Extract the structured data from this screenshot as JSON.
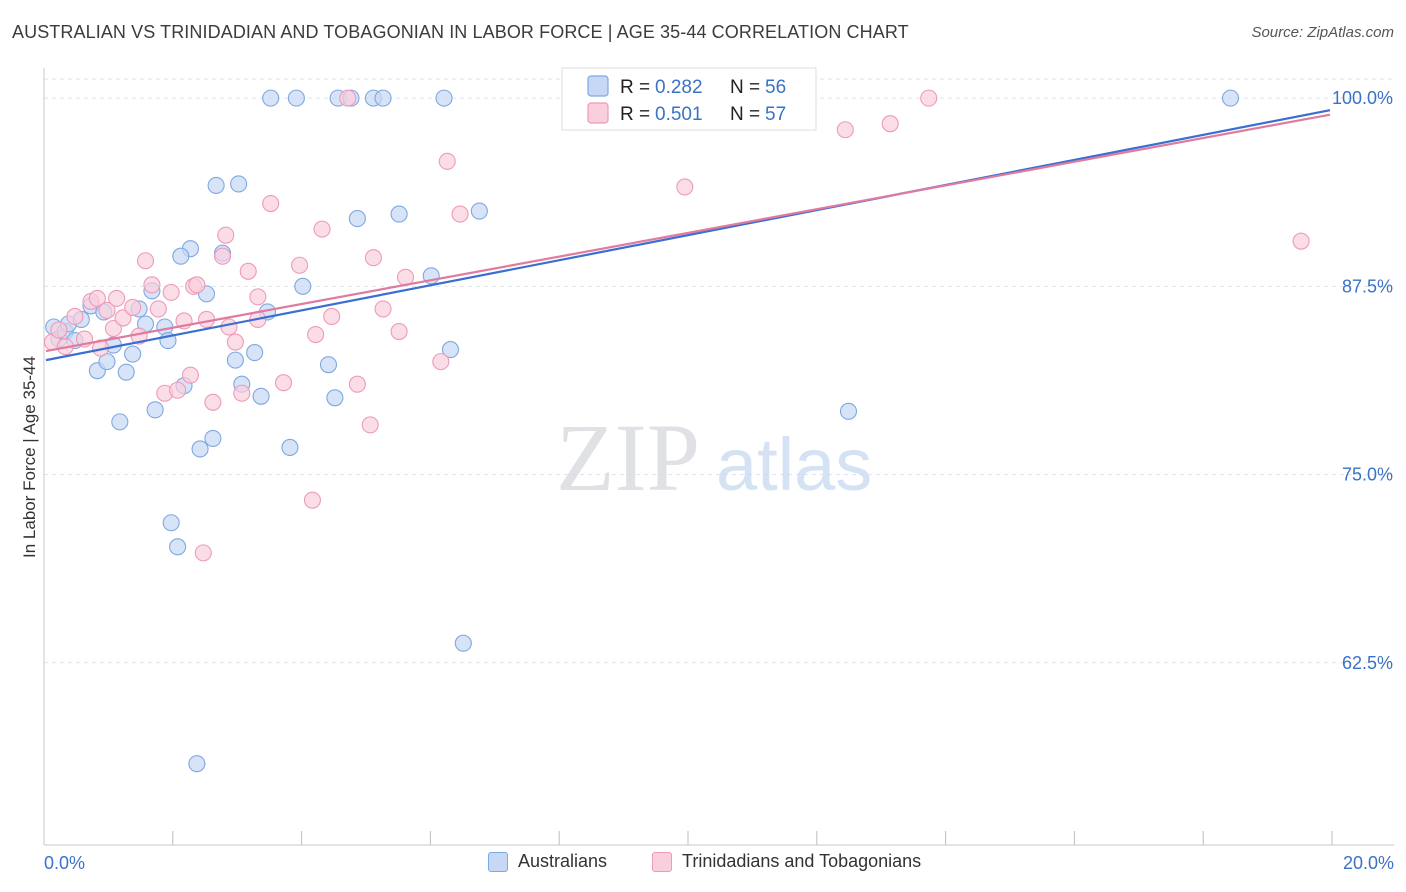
{
  "header": {
    "title": "AUSTRALIAN VS TRINIDADIAN AND TOBAGONIAN IN LABOR FORCE | AGE 35-44 CORRELATION CHART",
    "source": "Source: ZipAtlas.com"
  },
  "watermark": {
    "zip": "ZIP",
    "atlas": "atlas"
  },
  "colors": {
    "australians": "#7fa8e0",
    "australians_fill": "#c6d8f4",
    "australians_line": "#3a6fd0",
    "trinidadians": "#ee9ab8",
    "trinidadians_fill": "#f9cfdd",
    "trinidadians_line": "#e07aa0",
    "axis_text": "#3a72c8",
    "grid": "#dde3ea"
  },
  "legend": {
    "rows": [
      {
        "r_label": "R = ",
        "r_value": "0.282",
        "n_label": "N = ",
        "n_value": "56"
      },
      {
        "r_label": "R = ",
        "r_value": "0.501",
        "n_label": "N = ",
        "n_value": "57"
      }
    ]
  },
  "bottom_legend": {
    "series1": "Australians",
    "series2": "Trinidadians and Tobagonians"
  },
  "chart_data": {
    "type": "scatter",
    "title": "AUSTRALIAN VS TRINIDADIAN AND TOBAGONIAN IN LABOR FORCE | AGE 35-44 CORRELATION CHART",
    "xlabel": "",
    "ylabel": "In Labor Force | Age 35-44",
    "xlim": [
      0,
      20
    ],
    "ylim": [
      50.4,
      102
    ],
    "x_tick_labels": [
      "0.0%",
      "20.0%"
    ],
    "y_ticks": [
      62.5,
      75.0,
      87.5,
      100.0
    ],
    "y_tick_labels": [
      "62.5%",
      "75.0%",
      "87.5%",
      "100.0%"
    ],
    "grid": true,
    "legend_position": "top-center",
    "series": [
      {
        "name": "Australians",
        "r": 0.282,
        "n": 56,
        "trend": {
          "x": [
            0,
            20
          ],
          "y": [
            82.6,
            99.2
          ]
        },
        "points": [
          [
            0.12,
            84.8
          ],
          [
            0.2,
            84.0
          ],
          [
            0.3,
            84.5
          ],
          [
            0.35,
            85.0
          ],
          [
            0.45,
            83.9
          ],
          [
            0.55,
            85.3
          ],
          [
            0.7,
            86.2
          ],
          [
            0.8,
            81.9
          ],
          [
            0.9,
            85.8
          ],
          [
            0.95,
            82.5
          ],
          [
            1.05,
            83.6
          ],
          [
            1.15,
            78.5
          ],
          [
            1.25,
            81.8
          ],
          [
            1.35,
            83.0
          ],
          [
            1.45,
            86.0
          ],
          [
            1.55,
            85.0
          ],
          [
            1.65,
            87.2
          ],
          [
            1.7,
            79.3
          ],
          [
            1.85,
            84.8
          ],
          [
            1.9,
            83.9
          ],
          [
            1.95,
            71.8
          ],
          [
            2.05,
            70.2
          ],
          [
            2.15,
            80.9
          ],
          [
            2.25,
            90.0
          ],
          [
            2.35,
            55.8
          ],
          [
            2.4,
            76.7
          ],
          [
            2.5,
            87.0
          ],
          [
            2.6,
            77.4
          ],
          [
            2.65,
            94.2
          ],
          [
            2.75,
            89.7
          ],
          [
            2.95,
            82.6
          ],
          [
            3.0,
            94.3
          ],
          [
            3.05,
            81.0
          ],
          [
            3.25,
            83.1
          ],
          [
            3.35,
            80.2
          ],
          [
            3.45,
            85.8
          ],
          [
            3.5,
            100.0
          ],
          [
            3.9,
            100.0
          ],
          [
            3.8,
            76.8
          ],
          [
            4.0,
            87.5
          ],
          [
            4.4,
            82.3
          ],
          [
            4.5,
            80.1
          ],
          [
            4.55,
            100.0
          ],
          [
            4.75,
            100.0
          ],
          [
            4.85,
            92.0
          ],
          [
            5.1,
            100.0
          ],
          [
            5.25,
            100.0
          ],
          [
            5.5,
            92.3
          ],
          [
            6.0,
            88.2
          ],
          [
            6.3,
            83.3
          ],
          [
            6.5,
            63.8
          ],
          [
            6.2,
            100.0
          ],
          [
            6.75,
            92.5
          ],
          [
            12.5,
            79.2
          ],
          [
            18.45,
            100.0
          ],
          [
            2.1,
            89.5
          ]
        ]
      },
      {
        "name": "Trinidadians and Tobagonians",
        "r": 0.501,
        "n": 57,
        "trend": {
          "x": [
            0,
            20
          ],
          "y": [
            83.2,
            98.9
          ]
        },
        "points": [
          [
            0.1,
            83.8
          ],
          [
            0.2,
            84.6
          ],
          [
            0.3,
            83.5
          ],
          [
            0.45,
            85.5
          ],
          [
            0.6,
            84.0
          ],
          [
            0.7,
            86.5
          ],
          [
            0.8,
            86.7
          ],
          [
            0.85,
            83.4
          ],
          [
            0.95,
            85.9
          ],
          [
            1.05,
            84.7
          ],
          [
            1.1,
            86.7
          ],
          [
            1.2,
            85.4
          ],
          [
            1.35,
            86.1
          ],
          [
            1.45,
            84.2
          ],
          [
            1.55,
            89.2
          ],
          [
            1.65,
            87.6
          ],
          [
            1.75,
            86.0
          ],
          [
            1.85,
            80.4
          ],
          [
            1.95,
            87.1
          ],
          [
            2.05,
            80.6
          ],
          [
            2.15,
            85.2
          ],
          [
            2.25,
            81.6
          ],
          [
            2.3,
            87.5
          ],
          [
            2.5,
            85.3
          ],
          [
            2.6,
            79.8
          ],
          [
            2.75,
            89.5
          ],
          [
            2.85,
            84.8
          ],
          [
            2.95,
            83.8
          ],
          [
            3.05,
            80.4
          ],
          [
            3.15,
            88.5
          ],
          [
            3.3,
            85.3
          ],
          [
            3.5,
            93.0
          ],
          [
            3.7,
            81.1
          ],
          [
            3.95,
            88.9
          ],
          [
            4.15,
            73.3
          ],
          [
            4.3,
            91.3
          ],
          [
            4.45,
            85.5
          ],
          [
            4.7,
            100.0
          ],
          [
            4.85,
            81.0
          ],
          [
            5.05,
            78.3
          ],
          [
            5.1,
            89.4
          ],
          [
            5.25,
            86.0
          ],
          [
            5.5,
            84.5
          ],
          [
            5.6,
            88.1
          ],
          [
            6.15,
            82.5
          ],
          [
            6.25,
            95.8
          ],
          [
            6.45,
            92.3
          ],
          [
            9.95,
            94.1
          ],
          [
            12.45,
            97.9
          ],
          [
            13.15,
            98.3
          ],
          [
            13.75,
            100.0
          ],
          [
            19.55,
            90.5
          ],
          [
            2.45,
            69.8
          ],
          [
            2.35,
            87.6
          ],
          [
            2.8,
            90.9
          ],
          [
            3.3,
            86.8
          ],
          [
            4.2,
            84.3
          ]
        ]
      }
    ]
  }
}
